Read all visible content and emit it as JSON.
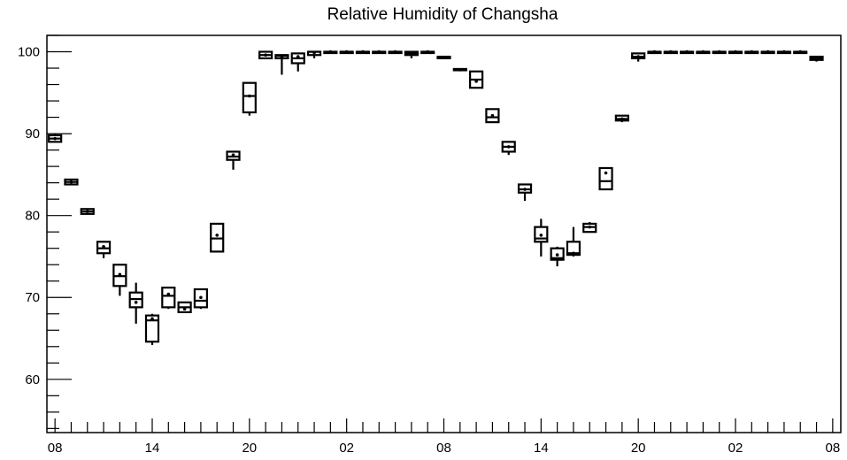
{
  "chart_data": {
    "type": "box",
    "title": "Relative Humidity of Changsha",
    "xlabel": "",
    "ylabel": "",
    "ylim": [
      53.5,
      102
    ],
    "xlim": [
      -0.5,
      48.5
    ],
    "y_ticks": [
      60,
      70,
      80,
      90,
      100
    ],
    "x_ticks": [
      {
        "pos": 0,
        "label": "08"
      },
      {
        "pos": 6,
        "label": "14"
      },
      {
        "pos": 12,
        "label": "20"
      },
      {
        "pos": 18,
        "label": "02"
      },
      {
        "pos": 24,
        "label": "08"
      },
      {
        "pos": 30,
        "label": "14"
      },
      {
        "pos": 36,
        "label": "20"
      },
      {
        "pos": 42,
        "label": "02"
      },
      {
        "pos": 48,
        "label": "08"
      }
    ],
    "grid": false,
    "boxes": [
      {
        "x": 0,
        "min": 89.0,
        "q1": 89.0,
        "median": 89.4,
        "q3": 89.8,
        "max": 90.0,
        "mean": 89.4
      },
      {
        "x": 1,
        "min": 83.8,
        "q1": 83.8,
        "median": 84.1,
        "q3": 84.4,
        "max": 84.4,
        "mean": 84.1
      },
      {
        "x": 2,
        "min": 80.2,
        "q1": 80.2,
        "median": 80.5,
        "q3": 80.8,
        "max": 80.8,
        "mean": 80.5
      },
      {
        "x": 3,
        "min": 74.8,
        "q1": 75.4,
        "median": 76.0,
        "q3": 76.8,
        "max": 76.8,
        "mean": 76.2
      },
      {
        "x": 4,
        "min": 70.2,
        "q1": 71.4,
        "median": 72.6,
        "q3": 74.0,
        "max": 74.0,
        "mean": 72.8
      },
      {
        "x": 5,
        "min": 66.8,
        "q1": 68.8,
        "median": 69.8,
        "q3": 70.6,
        "max": 71.8,
        "mean": 69.4
      },
      {
        "x": 6,
        "min": 64.2,
        "q1": 64.6,
        "median": 67.2,
        "q3": 67.8,
        "max": 68.0,
        "mean": 67.4
      },
      {
        "x": 7,
        "min": 68.6,
        "q1": 68.8,
        "median": 70.2,
        "q3": 71.2,
        "max": 71.2,
        "mean": 70.4
      },
      {
        "x": 8,
        "min": 68.2,
        "q1": 68.2,
        "median": 68.8,
        "q3": 69.4,
        "max": 69.4,
        "mean": 68.6
      },
      {
        "x": 9,
        "min": 68.6,
        "q1": 68.8,
        "median": 69.6,
        "q3": 71.0,
        "max": 71.0,
        "mean": 70.0
      },
      {
        "x": 10,
        "min": 75.6,
        "q1": 75.6,
        "median": 77.2,
        "q3": 79.0,
        "max": 79.0,
        "mean": 77.6
      },
      {
        "x": 11,
        "min": 85.6,
        "q1": 86.8,
        "median": 87.2,
        "q3": 87.8,
        "max": 87.8,
        "mean": 87.4
      },
      {
        "x": 12,
        "min": 92.2,
        "q1": 92.6,
        "median": 94.6,
        "q3": 96.2,
        "max": 96.2,
        "mean": 94.6
      },
      {
        "x": 13,
        "min": 99.2,
        "q1": 99.2,
        "median": 99.6,
        "q3": 100.0,
        "max": 100.0,
        "mean": 99.6
      },
      {
        "x": 14,
        "min": 97.2,
        "q1": 99.2,
        "median": 99.5,
        "q3": 99.6,
        "max": 99.6,
        "mean": 99.4
      },
      {
        "x": 15,
        "min": 97.6,
        "q1": 98.6,
        "median": 99.2,
        "q3": 99.8,
        "max": 99.8,
        "mean": 99.4
      },
      {
        "x": 16,
        "min": 99.2,
        "q1": 99.6,
        "median": 100.0,
        "q3": 100.0,
        "max": 100.0,
        "mean": 99.9
      },
      {
        "x": 17,
        "min": 100.0,
        "q1": 100.0,
        "median": 100.0,
        "q3": 100.0,
        "max": 100.0,
        "mean": 100.0
      },
      {
        "x": 18,
        "min": 100.0,
        "q1": 100.0,
        "median": 100.0,
        "q3": 100.0,
        "max": 100.0,
        "mean": 100.0
      },
      {
        "x": 19,
        "min": 100.0,
        "q1": 100.0,
        "median": 100.0,
        "q3": 100.0,
        "max": 100.0,
        "mean": 100.0
      },
      {
        "x": 20,
        "min": 100.0,
        "q1": 100.0,
        "median": 100.0,
        "q3": 100.0,
        "max": 100.0,
        "mean": 100.0
      },
      {
        "x": 21,
        "min": 100.0,
        "q1": 100.0,
        "median": 100.0,
        "q3": 100.0,
        "max": 100.0,
        "mean": 100.0
      },
      {
        "x": 22,
        "min": 99.2,
        "q1": 99.6,
        "median": 99.8,
        "q3": 100.0,
        "max": 100.0,
        "mean": 99.8
      },
      {
        "x": 23,
        "min": 100.0,
        "q1": 100.0,
        "median": 100.0,
        "q3": 100.0,
        "max": 100.0,
        "mean": 100.0
      },
      {
        "x": 24,
        "min": 99.2,
        "q1": 99.2,
        "median": 99.3,
        "q3": 99.4,
        "max": 99.4,
        "mean": 99.3
      },
      {
        "x": 25,
        "min": 97.8,
        "q1": 97.8,
        "median": 97.8,
        "q3": 97.9,
        "max": 97.9,
        "mean": 97.8
      },
      {
        "x": 26,
        "min": 95.6,
        "q1": 95.6,
        "median": 96.6,
        "q3": 97.6,
        "max": 97.6,
        "mean": 96.4
      },
      {
        "x": 27,
        "min": 91.4,
        "q1": 91.4,
        "median": 92.0,
        "q3": 93.0,
        "max": 93.0,
        "mean": 92.2
      },
      {
        "x": 28,
        "min": 87.4,
        "q1": 87.8,
        "median": 88.4,
        "q3": 89.0,
        "max": 89.0,
        "mean": 88.4
      },
      {
        "x": 29,
        "min": 81.8,
        "q1": 82.8,
        "median": 83.2,
        "q3": 83.8,
        "max": 83.8,
        "mean": 83.2
      },
      {
        "x": 30,
        "min": 75.0,
        "q1": 76.8,
        "median": 77.2,
        "q3": 78.6,
        "max": 79.6,
        "mean": 77.6
      },
      {
        "x": 31,
        "min": 73.8,
        "q1": 74.6,
        "median": 74.8,
        "q3": 76.0,
        "max": 76.2,
        "mean": 75.2
      },
      {
        "x": 32,
        "min": 75.0,
        "q1": 75.2,
        "median": 75.4,
        "q3": 76.8,
        "max": 78.6,
        "mean": 75.4
      },
      {
        "x": 33,
        "min": 78.0,
        "q1": 78.0,
        "median": 78.6,
        "q3": 79.0,
        "max": 79.2,
        "mean": 78.6
      },
      {
        "x": 34,
        "min": 83.2,
        "q1": 83.2,
        "median": 84.2,
        "q3": 85.8,
        "max": 85.8,
        "mean": 85.2
      },
      {
        "x": 35,
        "min": 91.4,
        "q1": 91.6,
        "median": 91.8,
        "q3": 92.2,
        "max": 92.2,
        "mean": 91.8
      },
      {
        "x": 36,
        "min": 98.8,
        "q1": 99.2,
        "median": 99.4,
        "q3": 99.8,
        "max": 99.8,
        "mean": 99.4
      },
      {
        "x": 37,
        "min": 100.0,
        "q1": 100.0,
        "median": 100.0,
        "q3": 100.0,
        "max": 100.0,
        "mean": 100.0
      },
      {
        "x": 38,
        "min": 100.0,
        "q1": 100.0,
        "median": 100.0,
        "q3": 100.0,
        "max": 100.0,
        "mean": 100.0
      },
      {
        "x": 39,
        "min": 100.0,
        "q1": 100.0,
        "median": 100.0,
        "q3": 100.0,
        "max": 100.0,
        "mean": 100.0
      },
      {
        "x": 40,
        "min": 100.0,
        "q1": 100.0,
        "median": 100.0,
        "q3": 100.0,
        "max": 100.0,
        "mean": 100.0
      },
      {
        "x": 41,
        "min": 100.0,
        "q1": 100.0,
        "median": 100.0,
        "q3": 100.0,
        "max": 100.0,
        "mean": 100.0
      },
      {
        "x": 42,
        "min": 100.0,
        "q1": 100.0,
        "median": 100.0,
        "q3": 100.0,
        "max": 100.0,
        "mean": 100.0
      },
      {
        "x": 43,
        "min": 100.0,
        "q1": 100.0,
        "median": 100.0,
        "q3": 100.0,
        "max": 100.0,
        "mean": 100.0
      },
      {
        "x": 44,
        "min": 100.0,
        "q1": 100.0,
        "median": 100.0,
        "q3": 100.0,
        "max": 100.0,
        "mean": 100.0
      },
      {
        "x": 45,
        "min": 100.0,
        "q1": 100.0,
        "median": 100.0,
        "q3": 100.0,
        "max": 100.0,
        "mean": 100.0
      },
      {
        "x": 46,
        "min": 100.0,
        "q1": 100.0,
        "median": 100.0,
        "q3": 100.0,
        "max": 100.0,
        "mean": 100.0
      },
      {
        "x": 47,
        "min": 98.8,
        "q1": 99.0,
        "median": 99.2,
        "q3": 99.4,
        "max": 99.4,
        "mean": 99.2
      }
    ]
  }
}
